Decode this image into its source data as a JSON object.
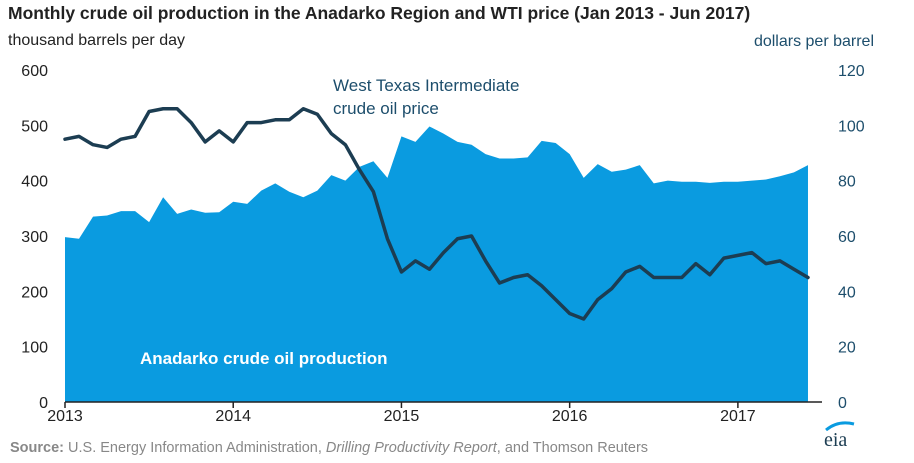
{
  "title": "Monthly crude oil production in the Anadarko Region and WTI price (Jan 2013 - Jun 2017)",
  "source": {
    "label": "Source:",
    "text1": " U.S. Energy Information Administration, ",
    "italic": "Drilling Productivity Report",
    "text2": ", and Thomson Reuters"
  },
  "logo_text": "eia",
  "colors": {
    "production_fill": "#0a9be0",
    "price_line": "#1c3d52",
    "axis": "#222222"
  },
  "chart_data": {
    "type": "area",
    "title": "Monthly crude oil production in the Anadarko Region and WTI price (Jan 2013 - Jun 2017)",
    "x": [
      "2013-01",
      "2013-02",
      "2013-03",
      "2013-04",
      "2013-05",
      "2013-06",
      "2013-07",
      "2013-08",
      "2013-09",
      "2013-10",
      "2013-11",
      "2013-12",
      "2014-01",
      "2014-02",
      "2014-03",
      "2014-04",
      "2014-05",
      "2014-06",
      "2014-07",
      "2014-08",
      "2014-09",
      "2014-10",
      "2014-11",
      "2014-12",
      "2015-01",
      "2015-02",
      "2015-03",
      "2015-04",
      "2015-05",
      "2015-06",
      "2015-07",
      "2015-08",
      "2015-09",
      "2015-10",
      "2015-11",
      "2015-12",
      "2016-01",
      "2016-02",
      "2016-03",
      "2016-04",
      "2016-05",
      "2016-06",
      "2016-07",
      "2016-08",
      "2016-09",
      "2016-10",
      "2016-11",
      "2016-12",
      "2017-01",
      "2017-02",
      "2017-03",
      "2017-04",
      "2017-05",
      "2017-06"
    ],
    "x_tick_labels": [
      "2013",
      "2014",
      "2015",
      "2016",
      "2017"
    ],
    "xlim": [
      "2013-01",
      "2017-07"
    ],
    "left_axis": {
      "label": "thousand barrels per day",
      "ylim": [
        0,
        600
      ],
      "ticks": [
        "0",
        "100",
        "200",
        "300",
        "400",
        "500",
        "600"
      ]
    },
    "right_axis": {
      "label": "dollars per barrel",
      "ylim": [
        0,
        120
      ],
      "ticks": [
        "0",
        "20",
        "40",
        "60",
        "80",
        "100",
        "120"
      ]
    },
    "series": [
      {
        "name": "Anadarko crude oil production",
        "type": "area",
        "axis": "left",
        "values": [
          298,
          295,
          335,
          337,
          345,
          345,
          325,
          370,
          340,
          348,
          342,
          343,
          362,
          358,
          382,
          395,
          380,
          370,
          382,
          410,
          400,
          425,
          435,
          405,
          480,
          470,
          498,
          485,
          470,
          465,
          448,
          440,
          440,
          442,
          472,
          468,
          448,
          405,
          430,
          416,
          420,
          428,
          395,
          400,
          398,
          398,
          396,
          398,
          398,
          400,
          402,
          408,
          415,
          428
        ]
      },
      {
        "name": "West Texas Intermediate crude oil price",
        "type": "line",
        "axis": "right",
        "values": [
          95,
          96,
          93,
          92,
          95,
          96,
          105,
          106,
          106,
          101,
          94,
          98,
          94,
          101,
          101,
          102,
          102,
          106,
          104,
          97,
          93,
          84,
          76,
          59,
          47,
          51,
          48,
          54,
          59,
          60,
          51,
          43,
          45,
          46,
          42,
          37,
          32,
          30,
          37,
          41,
          47,
          49,
          45,
          45,
          45,
          50,
          46,
          52,
          53,
          54,
          50,
          51,
          48,
          45
        ]
      }
    ],
    "annotations": [
      "West Texas Intermediate",
      "crude oil price",
      "Anadarko crude oil production"
    ]
  }
}
